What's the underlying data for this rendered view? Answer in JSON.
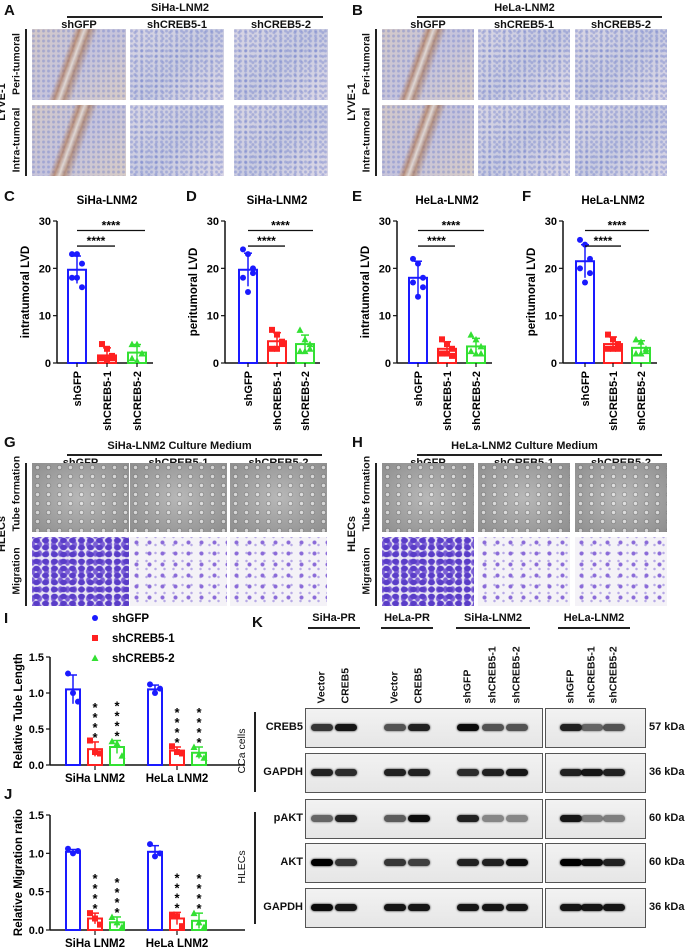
{
  "panels": {
    "A": "A",
    "B": "B",
    "C": "C",
    "D": "D",
    "E": "E",
    "F": "F",
    "G": "G",
    "H": "H",
    "I": "I",
    "J": "J",
    "K": "K"
  },
  "ihc": {
    "A": {
      "title": "SiHa-LNM2",
      "columns": [
        "shGFP",
        "shCREB5-1",
        "shCREB5-2"
      ],
      "rows": [
        "Peri-tumoral",
        "Intra-tumoral"
      ],
      "stain": "LYVE-1"
    },
    "B": {
      "title": "HeLa-LNM2",
      "columns": [
        "shGFP",
        "shCREB5-1",
        "shCREB5-2"
      ],
      "rows": [
        "Peri-tumoral",
        "Intra-tumoral"
      ],
      "stain": "LYVE-1"
    }
  },
  "hlec": {
    "G": {
      "title": "SiHa-LNM2 Culture Medium",
      "columns": [
        "shGFP",
        "shCREB5-1",
        "shCREB5-2"
      ],
      "rows": [
        "Tube formation",
        "Migration"
      ],
      "cell": "HLECs"
    },
    "H": {
      "title": "HeLa-LNM2 Culture Medium",
      "columns": [
        "shGFP",
        "shCREB5-1",
        "shCREB5-2"
      ],
      "rows": [
        "Tube formation",
        "Migration"
      ],
      "cell": "HLECs"
    }
  },
  "colors": {
    "shGFP": "#1a1aff",
    "shCREB5-1": "#ff2020",
    "shCREB5-2": "#33e033"
  },
  "chart_data": [
    {
      "id": "C",
      "type": "bar",
      "title": "SiHa-LNM2",
      "ylabel": "intratumoral LVD",
      "ylim": [
        0,
        30
      ],
      "yticks": [
        "0",
        "10",
        "20",
        "30"
      ],
      "categories": [
        "shGFP",
        "shCREB5-1",
        "shCREB5-2"
      ],
      "series": [
        {
          "name": "shGFP",
          "mean": 19.7,
          "sd": 2.9,
          "points": [
            23,
            23,
            21,
            18,
            18,
            16
          ]
        },
        {
          "name": "shCREB5-1",
          "mean": 1.6,
          "sd": 1.6,
          "points": [
            4,
            3,
            1.5,
            1,
            0.8,
            1
          ]
        },
        {
          "name": "shCREB5-2",
          "mean": 2.2,
          "sd": 1.7,
          "points": [
            4,
            4,
            2,
            1,
            0.5,
            2
          ]
        }
      ],
      "comparisons": [
        {
          "from": 0,
          "to": 1,
          "label": "****",
          "level": 24.7
        },
        {
          "from": 0,
          "to": 2,
          "label": "****",
          "level": 28
        }
      ]
    },
    {
      "id": "D",
      "type": "bar",
      "title": "SiHa-LNM2",
      "ylabel": "peritumoral LVD",
      "ylim": [
        0,
        30
      ],
      "yticks": [
        "0",
        "10",
        "20",
        "30"
      ],
      "categories": [
        "shGFP",
        "shCREB5-1",
        "shCREB5-2"
      ],
      "series": [
        {
          "name": "shGFP",
          "mean": 19.7,
          "sd": 3.5,
          "points": [
            24,
            23,
            20,
            18,
            15,
            19
          ]
        },
        {
          "name": "shCREB5-1",
          "mean": 4.6,
          "sd": 1.8,
          "points": [
            7,
            6,
            4.5,
            3,
            3,
            4
          ]
        },
        {
          "name": "shCREB5-2",
          "mean": 4,
          "sd": 1.9,
          "points": [
            7,
            5,
            4,
            2.5,
            2.5,
            3
          ]
        }
      ],
      "comparisons": [
        {
          "from": 0,
          "to": 1,
          "label": "****",
          "level": 24.7
        },
        {
          "from": 0,
          "to": 2,
          "label": "****",
          "level": 28
        }
      ]
    },
    {
      "id": "E",
      "type": "bar",
      "title": "HeLa-LNM2",
      "ylabel": "intratumoral LVD",
      "ylim": [
        0,
        30
      ],
      "yticks": [
        "0",
        "10",
        "20",
        "30"
      ],
      "categories": [
        "shGFP",
        "shCREB5-1",
        "shCREB5-2"
      ],
      "series": [
        {
          "name": "shGFP",
          "mean": 18,
          "sd": 3.5,
          "points": [
            22,
            21,
            18,
            17,
            14,
            16
          ]
        },
        {
          "name": "shCREB5-1",
          "mean": 3,
          "sd": 1.5,
          "points": [
            5,
            4,
            3,
            2,
            2,
            1.5
          ]
        },
        {
          "name": "shCREB5-2",
          "mean": 3.5,
          "sd": 1.7,
          "points": [
            6,
            5,
            3.5,
            2.5,
            2,
            2
          ]
        }
      ],
      "comparisons": [
        {
          "from": 0,
          "to": 1,
          "label": "****",
          "level": 24.7
        },
        {
          "from": 0,
          "to": 2,
          "label": "****",
          "level": 28
        }
      ]
    },
    {
      "id": "F",
      "type": "bar",
      "title": "HeLa-LNM2",
      "ylabel": "peritumoral LVD",
      "ylim": [
        0,
        30
      ],
      "yticks": [
        "0",
        "10",
        "20",
        "30"
      ],
      "categories": [
        "shGFP",
        "shCREB5-1",
        "shCREB5-2"
      ],
      "series": [
        {
          "name": "shGFP",
          "mean": 21.5,
          "sd": 3.5,
          "points": [
            26,
            25,
            22,
            20,
            17,
            19
          ]
        },
        {
          "name": "shCREB5-1",
          "mean": 4,
          "sd": 1.5,
          "points": [
            6,
            5,
            4,
            3,
            3,
            3
          ]
        },
        {
          "name": "shCREB5-2",
          "mean": 3.2,
          "sd": 1.5,
          "points": [
            5,
            4.5,
            3,
            2,
            2,
            2.5
          ]
        }
      ],
      "comparisons": [
        {
          "from": 0,
          "to": 1,
          "label": "****",
          "level": 24.7
        },
        {
          "from": 0,
          "to": 2,
          "label": "****",
          "level": 28
        }
      ]
    },
    {
      "id": "I",
      "type": "bar",
      "ylabel": "Relative Tube Length",
      "ylim": [
        0,
        1.5
      ],
      "yticks": [
        "0.0",
        "0.5",
        "1.0",
        "1.5"
      ],
      "groups": [
        "SiHa LNM2",
        "HeLa LNM2"
      ],
      "legend": [
        "shGFP",
        "shCREB5-1",
        "shCREB5-2"
      ],
      "series": [
        {
          "name": "shGFP",
          "mean": [
            1.05,
            1.05
          ],
          "sd": [
            0.2,
            0.06
          ],
          "points": [
            [
              1.27,
              1.0,
              0.88
            ],
            [
              1.12,
              1.0,
              1.06
            ]
          ],
          "sig": [
            "",
            ""
          ]
        },
        {
          "name": "shCREB5-1",
          "mean": [
            0.22,
            0.2
          ],
          "sd": [
            0.1,
            0.05
          ],
          "points": [
            [
              0.34,
              0.18,
              0.16
            ],
            [
              0.26,
              0.18,
              0.16
            ]
          ],
          "sig": [
            "****",
            "****"
          ]
        },
        {
          "name": "shCREB5-2",
          "mean": [
            0.25,
            0.17
          ],
          "sd": [
            0.09,
            0.08
          ],
          "points": [
            [
              0.33,
              0.3,
              0.13
            ],
            [
              0.25,
              0.15,
              0.1
            ]
          ],
          "sig": [
            "****",
            "****"
          ]
        }
      ]
    },
    {
      "id": "J",
      "type": "bar",
      "ylabel": "Relative Migration ratio",
      "ylim": [
        0,
        1.5
      ],
      "yticks": [
        "0.0",
        "0.5",
        "1.0",
        "1.5"
      ],
      "groups": [
        "SiHa LNM2",
        "HeLa LNM2"
      ],
      "series": [
        {
          "name": "shGFP",
          "mean": [
            1.02,
            1.02
          ],
          "sd": [
            0.03,
            0.08
          ],
          "points": [
            [
              1.06,
              1.0,
              1.03
            ],
            [
              1.12,
              0.96,
              1.0
            ]
          ],
          "sig": [
            "",
            ""
          ]
        },
        {
          "name": "shCREB5-1",
          "mean": [
            0.15,
            0.15
          ],
          "sd": [
            0.07,
            0.08
          ],
          "points": [
            [
              0.22,
              0.15,
              0.07
            ],
            [
              0.2,
              0.18,
              0.05
            ]
          ],
          "sig": [
            "****",
            "****"
          ]
        },
        {
          "name": "shCREB5-2",
          "mean": [
            0.1,
            0.12
          ],
          "sd": [
            0.07,
            0.1
          ],
          "points": [
            [
              0.17,
              0.1,
              0.04
            ],
            [
              0.22,
              0.1,
              0.04
            ]
          ],
          "sig": [
            "****",
            "****"
          ]
        }
      ]
    }
  ],
  "western": {
    "groups": [
      "SiHa-PR",
      "HeLa-PR",
      "SiHa-LNM2",
      "HeLa-LNM2"
    ],
    "lanes": [
      "Vector",
      "CREB5",
      "Vector",
      "CREB5",
      "shGFP",
      "shCREB5-1",
      "shCREB5-2",
      "shGFP",
      "shCREB5-1",
      "shCREB5-2"
    ],
    "sections": [
      "CCa cells",
      "HLECs"
    ],
    "rows": [
      {
        "label": "CREB5",
        "kda": "57 kDa",
        "intensity": [
          0.75,
          0.9,
          0.6,
          0.85,
          0.95,
          0.6,
          0.6,
          0.85,
          0.5,
          0.6
        ]
      },
      {
        "label": "GAPDH",
        "kda": "36 kDa",
        "intensity": [
          0.85,
          0.8,
          0.85,
          0.85,
          0.8,
          0.85,
          0.9,
          0.85,
          0.9,
          0.85
        ]
      },
      {
        "label": "pAKT",
        "kda": "60 kDa",
        "intensity": [
          0.5,
          0.85,
          0.55,
          0.95,
          0.85,
          0.3,
          0.3,
          0.9,
          0.35,
          0.35
        ]
      },
      {
        "label": "AKT",
        "kda": "60 kDa",
        "intensity": [
          1,
          0.75,
          0.75,
          0.7,
          0.85,
          0.85,
          0.95,
          1,
          0.95,
          0.85
        ]
      },
      {
        "label": "GAPDH",
        "kda": "36 kDa",
        "intensity": [
          0.95,
          0.9,
          0.9,
          0.9,
          0.9,
          0.9,
          0.9,
          0.9,
          0.9,
          0.9
        ]
      }
    ]
  }
}
